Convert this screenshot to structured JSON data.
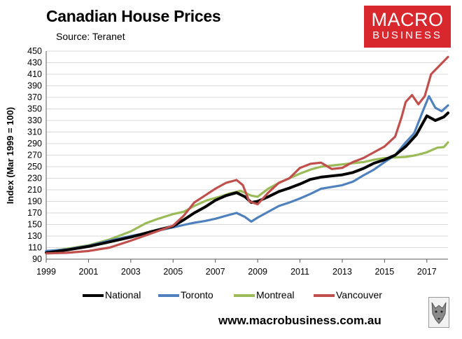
{
  "header": {
    "title": "Canadian House Prices",
    "subtitle": "Source: Teranet"
  },
  "logo": {
    "line1": "MACRO",
    "line2": "BUSINESS",
    "color": "#d9272e"
  },
  "footer": {
    "url": "www.macrobusiness.com.au"
  },
  "chart_data": {
    "type": "line",
    "title": "Canadian House Prices",
    "subtitle": "Source: Teranet",
    "ylabel": "Index (Mar 1999 = 100)",
    "xlabel": "",
    "xlim": [
      1999.0,
      2018.0
    ],
    "ylim": [
      90,
      450
    ],
    "x_ticks": [
      1999,
      2001,
      2003,
      2005,
      2007,
      2009,
      2011,
      2013,
      2015,
      2017
    ],
    "y_ticks": [
      90,
      110,
      130,
      150,
      170,
      190,
      210,
      230,
      250,
      270,
      290,
      310,
      330,
      350,
      370,
      390,
      410,
      430,
      450
    ],
    "grid": "horizontal",
    "legend_position": "bottom",
    "series": [
      {
        "name": "Montreal",
        "color": "#9bbb59",
        "points": [
          [
            1999.0,
            103
          ],
          [
            2000.0,
            108
          ],
          [
            2001.0,
            114
          ],
          [
            2002.0,
            124
          ],
          [
            2003.0,
            138
          ],
          [
            2003.7,
            152
          ],
          [
            2004.3,
            160
          ],
          [
            2005.0,
            168
          ],
          [
            2005.5,
            172
          ],
          [
            2006.0,
            182
          ],
          [
            2006.6,
            192
          ],
          [
            2007.2,
            198
          ],
          [
            2007.7,
            204
          ],
          [
            2008.2,
            208
          ],
          [
            2008.7,
            200
          ],
          [
            2009.0,
            198
          ],
          [
            2009.5,
            212
          ],
          [
            2010.0,
            222
          ],
          [
            2010.5,
            230
          ],
          [
            2011.0,
            238
          ],
          [
            2011.5,
            245
          ],
          [
            2012.0,
            250
          ],
          [
            2012.5,
            252
          ],
          [
            2013.0,
            254
          ],
          [
            2013.5,
            256
          ],
          [
            2014.0,
            258
          ],
          [
            2014.5,
            262
          ],
          [
            2015.0,
            265
          ],
          [
            2015.5,
            266
          ],
          [
            2016.0,
            267
          ],
          [
            2016.5,
            270
          ],
          [
            2017.0,
            275
          ],
          [
            2017.5,
            283
          ],
          [
            2017.8,
            284
          ],
          [
            2018.0,
            292
          ]
        ]
      },
      {
        "name": "Toronto",
        "color": "#4f81bd",
        "points": [
          [
            1999.0,
            104
          ],
          [
            2000.0,
            107
          ],
          [
            2001.0,
            113
          ],
          [
            2002.0,
            122
          ],
          [
            2003.0,
            130
          ],
          [
            2004.0,
            137
          ],
          [
            2005.0,
            145
          ],
          [
            2005.6,
            150
          ],
          [
            2006.0,
            153
          ],
          [
            2006.5,
            156
          ],
          [
            2007.0,
            160
          ],
          [
            2007.5,
            165
          ],
          [
            2008.0,
            170
          ],
          [
            2008.4,
            163
          ],
          [
            2008.7,
            155
          ],
          [
            2009.0,
            162
          ],
          [
            2009.5,
            172
          ],
          [
            2010.0,
            182
          ],
          [
            2010.5,
            188
          ],
          [
            2011.0,
            195
          ],
          [
            2011.5,
            203
          ],
          [
            2012.0,
            212
          ],
          [
            2012.5,
            215
          ],
          [
            2013.0,
            218
          ],
          [
            2013.5,
            224
          ],
          [
            2014.0,
            235
          ],
          [
            2014.5,
            245
          ],
          [
            2015.0,
            258
          ],
          [
            2015.5,
            270
          ],
          [
            2016.0,
            292
          ],
          [
            2016.4,
            308
          ],
          [
            2016.8,
            345
          ],
          [
            2017.1,
            372
          ],
          [
            2017.4,
            352
          ],
          [
            2017.7,
            346
          ],
          [
            2018.0,
            356
          ]
        ]
      },
      {
        "name": "National",
        "color": "#000000",
        "points": [
          [
            1999.0,
            101
          ],
          [
            2000.0,
            106
          ],
          [
            2001.0,
            112
          ],
          [
            2002.0,
            120
          ],
          [
            2003.0,
            128
          ],
          [
            2004.0,
            138
          ],
          [
            2005.0,
            147
          ],
          [
            2005.5,
            158
          ],
          [
            2006.0,
            170
          ],
          [
            2006.5,
            180
          ],
          [
            2007.0,
            192
          ],
          [
            2007.5,
            200
          ],
          [
            2008.0,
            205
          ],
          [
            2008.4,
            198
          ],
          [
            2008.7,
            188
          ],
          [
            2009.0,
            190
          ],
          [
            2009.5,
            198
          ],
          [
            2010.0,
            207
          ],
          [
            2010.5,
            213
          ],
          [
            2011.0,
            220
          ],
          [
            2011.5,
            228
          ],
          [
            2012.0,
            232
          ],
          [
            2012.5,
            234
          ],
          [
            2013.0,
            236
          ],
          [
            2013.5,
            240
          ],
          [
            2014.0,
            247
          ],
          [
            2014.5,
            256
          ],
          [
            2015.0,
            262
          ],
          [
            2015.5,
            270
          ],
          [
            2016.0,
            285
          ],
          [
            2016.5,
            305
          ],
          [
            2017.0,
            338
          ],
          [
            2017.4,
            330
          ],
          [
            2017.8,
            336
          ],
          [
            2018.0,
            343
          ]
        ]
      },
      {
        "name": "Vancouver",
        "color": "#c0504d",
        "points": [
          [
            1999.0,
            100
          ],
          [
            2000.0,
            101
          ],
          [
            2001.0,
            104
          ],
          [
            2002.0,
            110
          ],
          [
            2003.0,
            122
          ],
          [
            2004.0,
            135
          ],
          [
            2005.0,
            148
          ],
          [
            2005.5,
            165
          ],
          [
            2006.0,
            188
          ],
          [
            2006.5,
            200
          ],
          [
            2007.0,
            212
          ],
          [
            2007.5,
            222
          ],
          [
            2008.0,
            227
          ],
          [
            2008.3,
            218
          ],
          [
            2008.6,
            190
          ],
          [
            2009.0,
            185
          ],
          [
            2009.5,
            205
          ],
          [
            2010.0,
            222
          ],
          [
            2010.5,
            230
          ],
          [
            2011.0,
            248
          ],
          [
            2011.5,
            255
          ],
          [
            2012.0,
            257
          ],
          [
            2012.5,
            246
          ],
          [
            2013.0,
            248
          ],
          [
            2013.5,
            258
          ],
          [
            2014.0,
            265
          ],
          [
            2014.5,
            275
          ],
          [
            2015.0,
            285
          ],
          [
            2015.5,
            302
          ],
          [
            2015.8,
            335
          ],
          [
            2016.0,
            362
          ],
          [
            2016.3,
            374
          ],
          [
            2016.6,
            358
          ],
          [
            2016.9,
            372
          ],
          [
            2017.2,
            410
          ],
          [
            2017.6,
            425
          ],
          [
            2018.0,
            440
          ]
        ]
      }
    ]
  },
  "legend": {
    "items": [
      {
        "label": "National",
        "color": "#000000"
      },
      {
        "label": "Toronto",
        "color": "#4f81bd"
      },
      {
        "label": "Montreal",
        "color": "#9bbb59"
      },
      {
        "label": "Vancouver",
        "color": "#c0504d"
      }
    ]
  }
}
